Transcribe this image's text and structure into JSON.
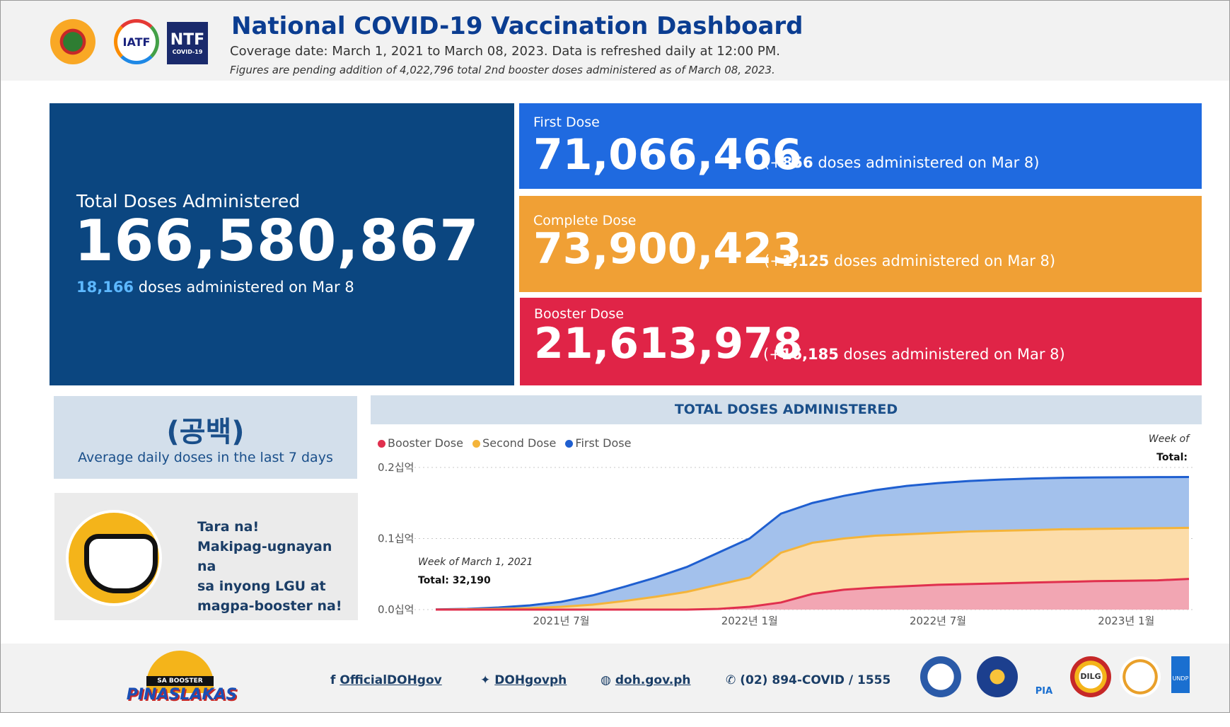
{
  "header": {
    "title": "National COVID-19 Vaccination Dashboard",
    "coverage": "Coverage date: March 1, 2021 to March 08, 2023. Data is refreshed daily at 12:00 PM.",
    "note": "Figures are pending addition of 4,022,796 total 2nd booster doses administered as of March 08, 2023.",
    "logos": {
      "iatf": "IATF",
      "ntf_main": "NTF",
      "ntf_sub": "COVID-19"
    }
  },
  "total": {
    "label": "Total Doses Administered",
    "value": "166,580,867",
    "daily_value": "18,166",
    "daily_suffix": " doses administered on Mar 8"
  },
  "first": {
    "label": "First Dose",
    "value": "71,066,466",
    "inc_open": "(+",
    "inc_value": "856",
    "inc_suffix": " doses administered on Mar 8)"
  },
  "complete": {
    "label": "Complete Dose",
    "value": "73,900,423",
    "inc_open": "(+",
    "inc_value": "1,125",
    "inc_suffix": " doses administered on Mar 8)"
  },
  "booster": {
    "label": "Booster Dose",
    "value": "21,613,978",
    "inc_open": "(+",
    "inc_value": "16,185",
    "inc_suffix": " doses administered on Mar 8)"
  },
  "average": {
    "value": "(공백)",
    "label": "Average daily doses in the last 7 days"
  },
  "promo": {
    "line1": "Tara na!",
    "line2": "Makipag-ugnayan na",
    "line3": "sa inyong LGU at",
    "line4": "magpa-booster na!"
  },
  "chart_header": "TOTAL DOSES ADMINISTERED",
  "tooltip_right": {
    "week": "Week of",
    "total": "Total:"
  },
  "tooltip_left": {
    "week": "Week of March 1, 2021",
    "total": "Total: 32,190"
  },
  "chart_data": {
    "type": "area",
    "title": "TOTAL DOSES ADMINISTERED",
    "x": [
      "2021-03",
      "2021-04",
      "2021-05",
      "2021-06",
      "2021-07",
      "2021-08",
      "2021-09",
      "2021-10",
      "2021-11",
      "2021-12",
      "2022-01",
      "2022-02",
      "2022-03",
      "2022-04",
      "2022-05",
      "2022-06",
      "2022-07",
      "2022-08",
      "2022-09",
      "2022-10",
      "2022-11",
      "2022-12",
      "2023-01",
      "2023-02",
      "2023-03"
    ],
    "xticks": [
      "2021년 7월",
      "2022년 1월",
      "2022년 7월",
      "2023년 1월"
    ],
    "xtick_positions": [
      "2021-07",
      "2022-01",
      "2022-07",
      "2023-01"
    ],
    "ylabel": "",
    "yticks": [
      "0.0십억",
      "0.1십억",
      "0.2십억"
    ],
    "ylim": [
      0,
      0.2
    ],
    "legend_position": "top-left",
    "series": [
      {
        "name": "Booster Dose",
        "color": "#e0304e",
        "fill": "#f2a6b3",
        "values": [
          0,
          0,
          0,
          0,
          0,
          0,
          0,
          0,
          0,
          0.001,
          0.004,
          0.01,
          0.022,
          0.028,
          0.031,
          0.033,
          0.035,
          0.036,
          0.037,
          0.038,
          0.039,
          0.04,
          0.0405,
          0.0412,
          0.0432
        ]
      },
      {
        "name": "Second Dose",
        "color": "#f4b43a",
        "fill": "#fcdca9",
        "values": [
          0.0001,
          0.0005,
          0.001,
          0.002,
          0.004,
          0.007,
          0.012,
          0.018,
          0.025,
          0.035,
          0.045,
          0.08,
          0.094,
          0.1,
          0.104,
          0.106,
          0.108,
          0.11,
          0.111,
          0.112,
          0.113,
          0.1135,
          0.114,
          0.1145,
          0.115
        ]
      },
      {
        "name": "First Dose",
        "color": "#1f5fd0",
        "fill": "#a3c1ec",
        "values": [
          0.0003,
          0.001,
          0.003,
          0.006,
          0.011,
          0.02,
          0.032,
          0.045,
          0.06,
          0.08,
          0.1,
          0.135,
          0.15,
          0.16,
          0.168,
          0.174,
          0.178,
          0.181,
          0.183,
          0.1845,
          0.1855,
          0.186,
          0.1862,
          0.1864,
          0.1866
        ]
      }
    ]
  },
  "footer": {
    "facebook": "OfficialDOHgov",
    "twitter": "DOHgovph",
    "website": "doh.gov.ph",
    "phone": "(02) 894-COVID / 1555",
    "booster_logo_top": "SA BOOSTER",
    "booster_logo_word": "PINASLAKAS",
    "partner_labels": [
      "PIA",
      "DILG",
      "UNDP"
    ]
  },
  "colors": {
    "total_card": "#0b4680",
    "first_card": "#1f6ae0",
    "complete_card": "#f0a035",
    "booster_card": "#e02447",
    "highlight": "#5db8ff"
  }
}
